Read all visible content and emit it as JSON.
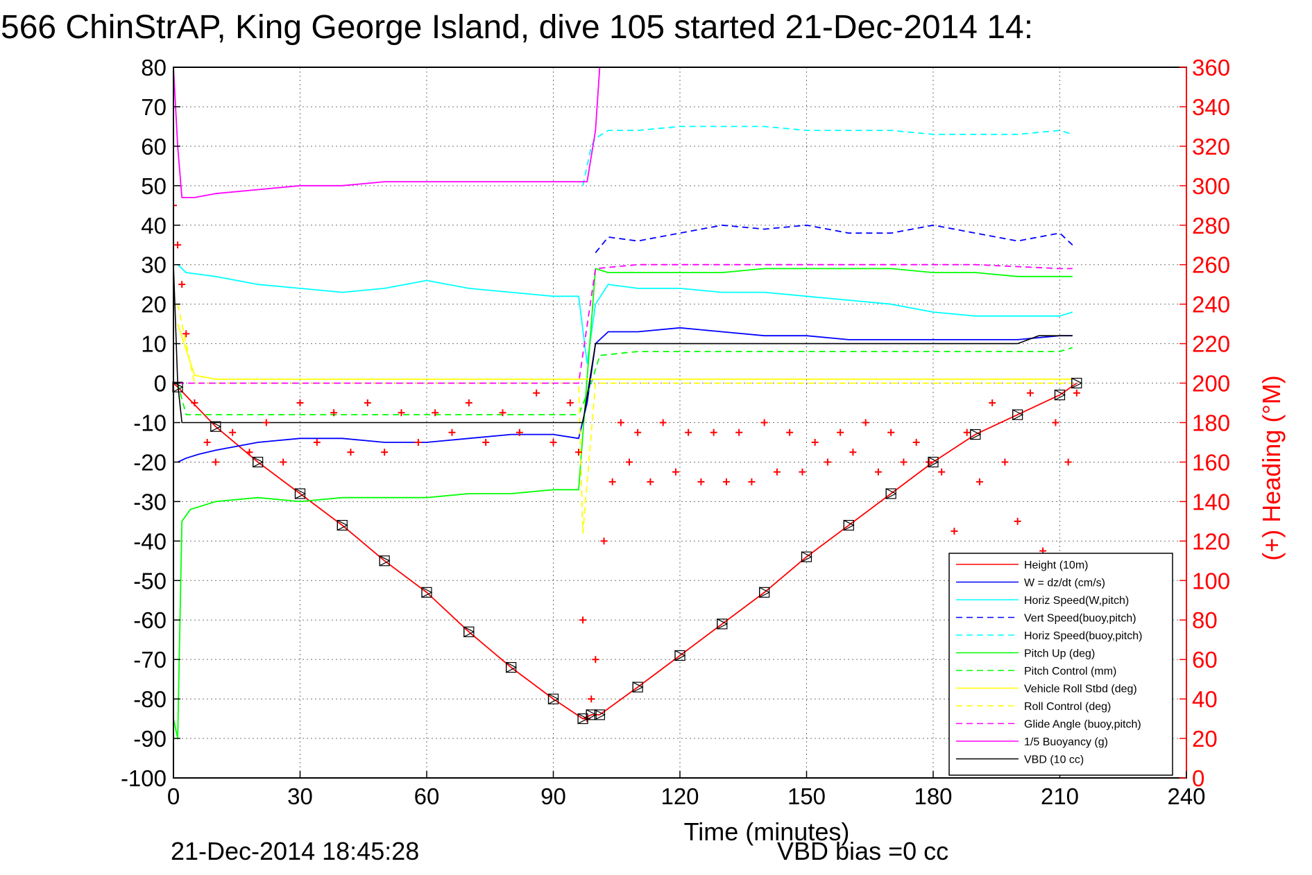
{
  "title": "566 ChinStrAP, King George Island, dive 105 started 21-Dec-2014 14:",
  "footer": {
    "timestamp": "21-Dec-2014 18:45:28",
    "vbd_bias": "VBD bias =0 cc"
  },
  "chart_data": {
    "type": "line",
    "title": "566 ChinStrAP, King George Island, dive 105 started 21-Dec-2014 14:",
    "xlabel": "Time (minutes)",
    "ylabel": "",
    "ylabel_right": "(+) Heading (°M)",
    "xlim": [
      0,
      240
    ],
    "ylim": [
      -100,
      80
    ],
    "ylim_right": [
      0,
      360
    ],
    "x_ticks": [
      0,
      30,
      60,
      90,
      120,
      150,
      180,
      210,
      240
    ],
    "y_ticks": [
      80,
      70,
      60,
      50,
      40,
      30,
      20,
      10,
      0,
      -10,
      -20,
      -30,
      -40,
      -50,
      -60,
      -70,
      -80,
      -90,
      -100
    ],
    "y_ticks_right": [
      360,
      340,
      320,
      300,
      280,
      260,
      240,
      220,
      200,
      180,
      160,
      140,
      120,
      100,
      80,
      60,
      40,
      20,
      0
    ],
    "grid": true,
    "legend_position": "bottom-right",
    "series": [
      {
        "name": "Height (10m)",
        "color": "#ff0000",
        "style": "solid",
        "x": [
          0,
          1,
          10,
          20,
          30,
          40,
          50,
          60,
          70,
          80,
          90,
          97,
          99,
          101,
          110,
          120,
          130,
          140,
          150,
          160,
          170,
          180,
          190,
          200,
          210,
          214
        ],
        "y": [
          0,
          -1,
          -11,
          -20,
          -28,
          -36,
          -45,
          -53,
          -63,
          -72,
          -80,
          -85,
          -84,
          -84,
          -77,
          -69,
          -61,
          -53,
          -44,
          -36,
          -28,
          -20,
          -13,
          -8,
          -3,
          0
        ]
      },
      {
        "name": "W = dz/dt (cm/s)",
        "color": "#0000ff",
        "style": "solid",
        "x": [
          1,
          3,
          6,
          10,
          20,
          30,
          40,
          50,
          60,
          70,
          80,
          90,
          96,
          98,
          100,
          103,
          110,
          120,
          130,
          140,
          150,
          160,
          170,
          180,
          190,
          200,
          210,
          213
        ],
        "y": [
          -20,
          -19,
          -18,
          -17,
          -15,
          -14,
          -14,
          -15,
          -15,
          -14,
          -13,
          -13,
          -14,
          -5,
          10,
          13,
          13,
          14,
          13,
          12,
          12,
          11,
          11,
          11,
          11,
          11,
          12,
          12
        ]
      },
      {
        "name": "Horiz Speed(W,pitch)",
        "color": "#00ffff",
        "style": "solid",
        "x": [
          1,
          3,
          10,
          20,
          30,
          40,
          50,
          60,
          70,
          80,
          90,
          96,
          98,
          100,
          103,
          110,
          120,
          130,
          140,
          150,
          160,
          170,
          180,
          190,
          200,
          210,
          213
        ],
        "y": [
          30,
          28,
          27,
          25,
          24,
          23,
          24,
          26,
          24,
          23,
          22,
          22,
          5,
          20,
          25,
          24,
          24,
          23,
          23,
          22,
          21,
          20,
          18,
          17,
          17,
          17,
          18
        ]
      },
      {
        "name": "Vert Speed(buoy,pitch)",
        "color": "#0000ff",
        "style": "dashed",
        "x": [
          100,
          103,
          110,
          120,
          130,
          140,
          150,
          160,
          170,
          180,
          190,
          200,
          210,
          213
        ],
        "y": [
          33,
          37,
          36,
          38,
          40,
          39,
          40,
          38,
          38,
          40,
          38,
          36,
          38,
          35
        ]
      },
      {
        "name": "Horiz Speed(buoy,pitch)",
        "color": "#00ffff",
        "style": "dashed",
        "x": [
          97,
          99,
          100,
          103,
          110,
          120,
          130,
          140,
          150,
          160,
          170,
          180,
          190,
          200,
          210,
          213
        ],
        "y": [
          50,
          60,
          62,
          64,
          64,
          65,
          65,
          65,
          64,
          64,
          64,
          63,
          63,
          63,
          64,
          63
        ]
      },
      {
        "name": "Pitch Up (deg)",
        "color": "#00ff00",
        "style": "solid",
        "x": [
          0,
          1,
          2,
          4,
          10,
          20,
          30,
          40,
          50,
          60,
          70,
          80,
          90,
          96,
          100,
          103,
          110,
          120,
          130,
          140,
          150,
          160,
          170,
          180,
          190,
          200,
          210,
          213
        ],
        "y": [
          -85,
          -90,
          -35,
          -32,
          -30,
          -29,
          -30,
          -29,
          -29,
          -29,
          -28,
          -28,
          -27,
          -27,
          29,
          28,
          28,
          28,
          28,
          29,
          29,
          29,
          29,
          28,
          28,
          27,
          27,
          27
        ]
      },
      {
        "name": "Pitch Control (mm)",
        "color": "#00ff00",
        "style": "dashed",
        "x": [
          1,
          3,
          10,
          20,
          40,
          60,
          80,
          96,
          99,
          101,
          110,
          130,
          150,
          170,
          190,
          210,
          213
        ],
        "y": [
          0,
          -8,
          -8,
          -8,
          -8,
          -8,
          -8,
          -8,
          0,
          7,
          8,
          8,
          8,
          8,
          8,
          8,
          9
        ]
      },
      {
        "name": "Vehicle Roll Stbd (deg)",
        "color": "#ffff00",
        "style": "solid",
        "x": [
          1,
          5,
          10,
          20,
          30,
          40,
          50,
          60,
          70,
          80,
          90,
          96,
          100,
          110,
          120,
          130,
          140,
          150,
          160,
          170,
          180,
          190,
          200,
          210,
          213
        ],
        "y": [
          15,
          2,
          1,
          1,
          1,
          1,
          1,
          1,
          1,
          1,
          1,
          1,
          1,
          1,
          1,
          1,
          1,
          1,
          1,
          1,
          1,
          1,
          1,
          1,
          1
        ]
      },
      {
        "name": "Roll Control (deg)",
        "color": "#ffff00",
        "style": "dashed",
        "x": [
          1,
          5,
          10,
          30,
          50,
          70,
          90,
          96,
          97,
          100,
          120,
          140,
          160,
          180,
          200,
          213
        ],
        "y": [
          20,
          0,
          0,
          0,
          0,
          0,
          0,
          0,
          -38,
          0,
          0,
          0,
          0,
          0,
          0,
          0
        ]
      },
      {
        "name": "Glide Angle (buoy,pitch)",
        "color": "#ff00ff",
        "style": "dashed",
        "x": [
          1,
          10,
          40,
          70,
          96,
          100,
          110,
          130,
          150,
          170,
          190,
          210,
          213
        ],
        "y": [
          0,
          0,
          0,
          0,
          0,
          29,
          30,
          30,
          30,
          30,
          30,
          29,
          29
        ]
      },
      {
        "name": "1/5 Buoyancy (g)",
        "color": "#ff00ff",
        "style": "solid",
        "x": [
          0,
          1,
          2,
          5,
          10,
          20,
          30,
          40,
          50,
          60,
          70,
          80,
          90,
          97,
          98,
          100,
          101
        ],
        "y": [
          80,
          60,
          47,
          47,
          48,
          49,
          50,
          50,
          51,
          51,
          51,
          51,
          51,
          51,
          51,
          64,
          80
        ]
      },
      {
        "name": "VBD (10 cc)",
        "color": "#000000",
        "style": "solid",
        "x": [
          0,
          1,
          2,
          10,
          40,
          70,
          97,
          100,
          110,
          130,
          150,
          170,
          190,
          200,
          205,
          213
        ],
        "y": [
          30,
          0,
          -10,
          -10,
          -10,
          -10,
          -10,
          10,
          10,
          10,
          10,
          10,
          10,
          10,
          12,
          12
        ]
      }
    ],
    "heading_series": {
      "name": "Heading",
      "color": "#ff0000",
      "marker": "+",
      "x": [
        0,
        1,
        2,
        3,
        5,
        8,
        10,
        14,
        18,
        22,
        26,
        30,
        34,
        38,
        42,
        46,
        50,
        54,
        58,
        62,
        66,
        70,
        74,
        78,
        82,
        86,
        90,
        94,
        96,
        97,
        98,
        99,
        100,
        102,
        104,
        106,
        108,
        110,
        113,
        116,
        119,
        122,
        125,
        128,
        131,
        134,
        137,
        140,
        143,
        146,
        149,
        152,
        155,
        158,
        161,
        164,
        167,
        170,
        173,
        176,
        179,
        182,
        185,
        188,
        191,
        194,
        197,
        200,
        203,
        206,
        209,
        212,
        214
      ],
      "y": [
        290,
        270,
        250,
        225,
        190,
        170,
        160,
        175,
        165,
        180,
        160,
        190,
        170,
        185,
        165,
        190,
        165,
        185,
        170,
        185,
        175,
        190,
        170,
        185,
        175,
        195,
        170,
        190,
        165,
        80,
        30,
        40,
        60,
        120,
        150,
        180,
        160,
        175,
        150,
        180,
        155,
        175,
        150,
        175,
        150,
        175,
        150,
        180,
        155,
        175,
        155,
        170,
        160,
        175,
        165,
        180,
        155,
        175,
        160,
        170,
        160,
        155,
        125,
        175,
        150,
        190,
        160,
        130,
        195,
        115,
        180,
        160,
        195
      ]
    }
  }
}
